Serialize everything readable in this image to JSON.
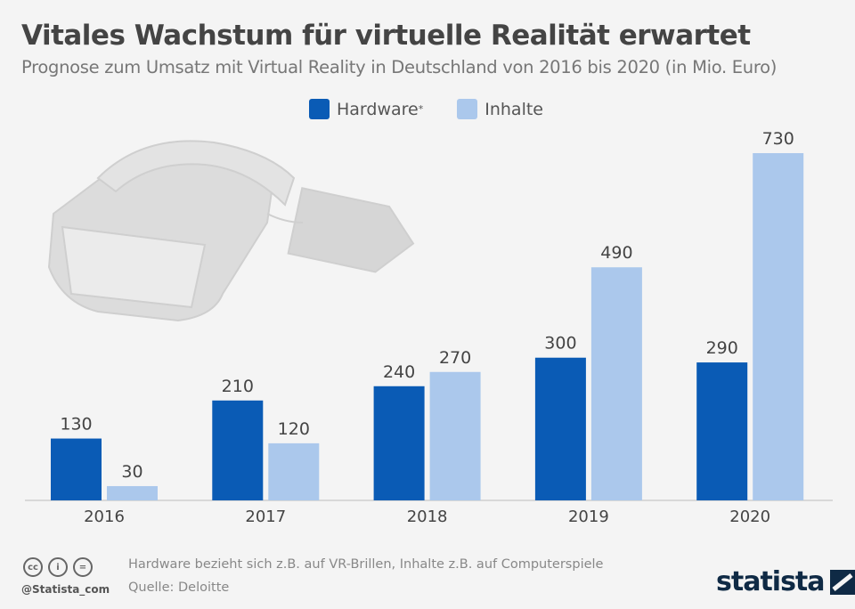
{
  "title": "Vitales Wachstum für virtuelle Realität erwartet",
  "subtitle": "Prognose zum Umsatz mit Virtual Reality in Deutschland von 2016 bis 2020 (in Mio. Euro)",
  "chart_data": {
    "type": "bar",
    "categories": [
      "2016",
      "2017",
      "2018",
      "2019",
      "2020"
    ],
    "series": [
      {
        "name": "Hardware*",
        "color": "#0a5bb5",
        "values": [
          130,
          210,
          240,
          300,
          290
        ]
      },
      {
        "name": "Inhalte",
        "color": "#abc8ec",
        "values": [
          30,
          120,
          270,
          490,
          730
        ]
      }
    ],
    "ylim": [
      0,
      730
    ],
    "grid": false,
    "legend": "top-center",
    "data_labels": true
  },
  "legend": {
    "hardware": "Hardware",
    "hardware_mark": "*",
    "inhalte": "Inhalte"
  },
  "footer": {
    "note": "Hardware bezieht sich z.B. auf VR-Brillen, Inhalte z.B. auf Computerspiele",
    "source": "Quelle: Deloitte",
    "handle": "@Statista_com",
    "brand": "statista",
    "cc_icons": [
      "cc",
      "i",
      "="
    ]
  }
}
